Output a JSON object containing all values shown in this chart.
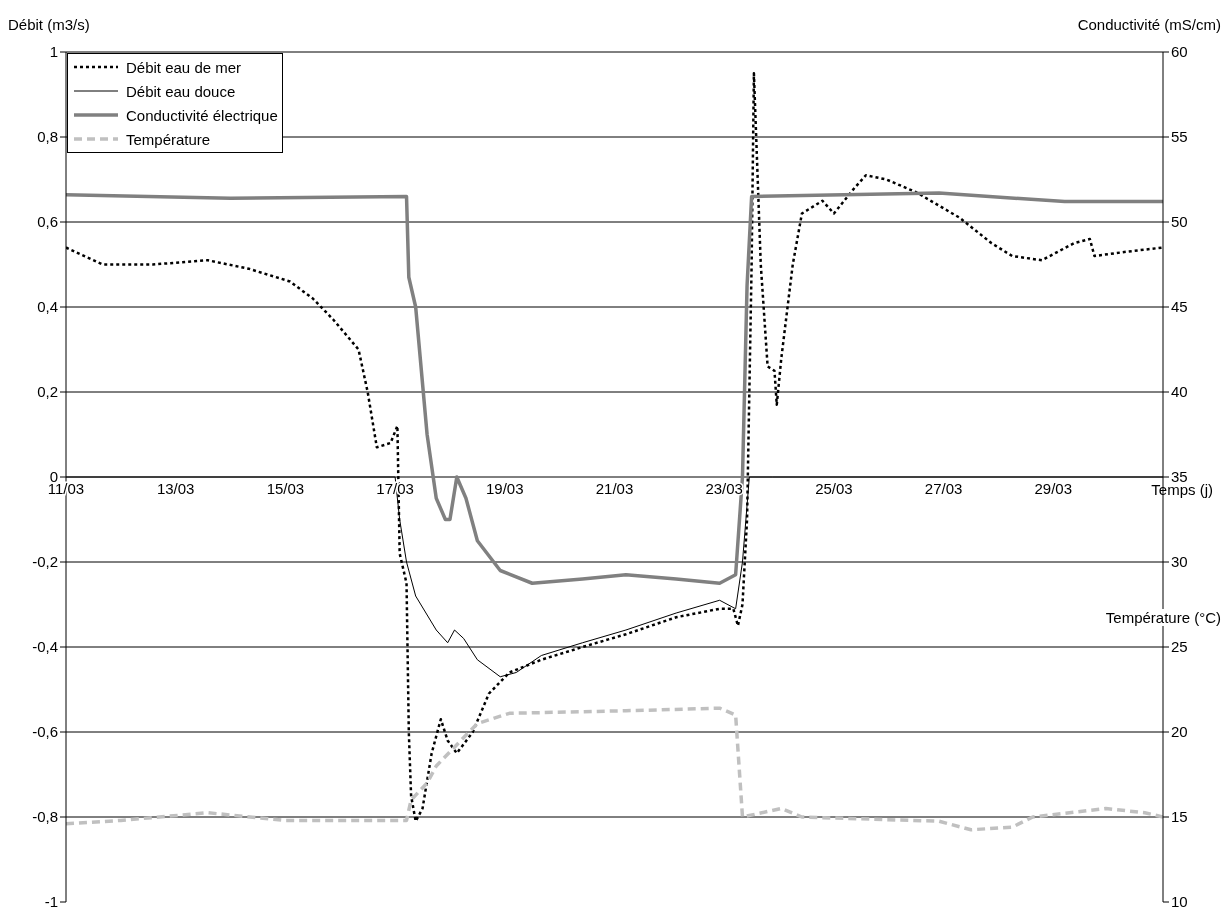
{
  "chart_data": {
    "type": "line",
    "ylabel": "Débit (m3/s)",
    "y2label": "Conductivité (mS/cm)",
    "xlabel": "Temps (j)",
    "annotations": [
      "Température (°C)"
    ],
    "xlim": [
      "--03-11",
      "--03-31"
    ],
    "xticks": [
      {
        "value": "--03-11",
        "label": "11/03"
      },
      {
        "value": "--03-13",
        "label": "13/03"
      },
      {
        "value": "--03-15",
        "label": "15/03"
      },
      {
        "value": "--03-17",
        "label": "17/03"
      },
      {
        "value": "--03-19",
        "label": "19/03"
      },
      {
        "value": "--03-21",
        "label": "21/03"
      },
      {
        "value": "--03-23",
        "label": "23/03"
      },
      {
        "value": "--03-25",
        "label": "25/03"
      },
      {
        "value": "--03-27",
        "label": "27/03"
      },
      {
        "value": "--03-29",
        "label": "29/03"
      }
    ],
    "ylim": [
      -1,
      1
    ],
    "yticks": [
      -1,
      {
        "value": -0.8,
        "label": "-0,8"
      },
      {
        "value": -0.6,
        "label": "-0,6"
      },
      {
        "value": -0.4,
        "label": "-0,4"
      },
      {
        "value": -0.2,
        "label": "-0,2"
      },
      0,
      {
        "value": 0.2,
        "label": "0,2"
      },
      {
        "value": 0.4,
        "label": "0,4"
      },
      {
        "value": 0.6,
        "label": "0,6"
      },
      {
        "value": 0.8,
        "label": "0,8"
      },
      1
    ],
    "y2lim": [
      10,
      60
    ],
    "y2ticks": [
      10,
      15,
      20,
      25,
      30,
      35,
      40,
      45,
      50,
      55,
      60
    ],
    "grid": "y",
    "legend": "top left",
    "marker": "none",
    "series": [
      {
        "name": "Débit eau de mer",
        "color": "#000000",
        "line_style": "dotted",
        "x": [
          "--03-11T00:00",
          "--03-11T16:00",
          "--03-12T14:00",
          "--03-13T14:00",
          "--03-14T08:00",
          "--03-15T02:00",
          "--03-15T12:00",
          "--03-15T21:00",
          "--03-16T08:00",
          "--03-16T12:00",
          "--03-16T16:00",
          "--03-16T22:00",
          "--03-17T01:00",
          "--03-17T02:00",
          "--03-17T05:00",
          "--03-17T06:00",
          "--03-17T07:00",
          "--03-17T09:00",
          "--03-17T12:00",
          "--03-17T16:00",
          "--03-17T20:00",
          "--03-17T23:00",
          "--03-18T03:00",
          "--03-18T10:00",
          "--03-18T17:00",
          "--03-19T02:00",
          "--03-19T16:00",
          "--03-20T10:00",
          "--03-21T05:00",
          "--03-22T03:00",
          "--03-22T22:00",
          "--03-23T04:00",
          "--03-23T06:00",
          "--03-23T08:00",
          "--03-23T10:00",
          "--03-23T12:00",
          "--03-23T13:00",
          "--03-23T16:00",
          "--03-23T19:00",
          "--03-23T22:00",
          "--03-23T23:00",
          "--03-24T01:00",
          "--03-24T06:00",
          "--03-24T10:00",
          "--03-24T19:00",
          "--03-25T00:00",
          "--03-25T09:00",
          "--03-25T14:00",
          "--03-25T23:00",
          "--03-26T12:00",
          "--03-27T07:00",
          "--03-27T21:00",
          "--03-28T06:00",
          "--03-28T19:00",
          "--03-29T09:00",
          "--03-29T16:00",
          "--03-29T18:00",
          "--03-30T08:00",
          "--03-31T00:00"
        ],
        "values": [
          0.54,
          0.5,
          0.5,
          0.51,
          0.49,
          0.46,
          0.42,
          0.37,
          0.3,
          0.2,
          0.07,
          0.08,
          0.12,
          -0.18,
          -0.25,
          -0.6,
          -0.75,
          -0.81,
          -0.78,
          -0.65,
          -0.57,
          -0.62,
          -0.65,
          -0.6,
          -0.51,
          -0.46,
          -0.43,
          -0.4,
          -0.37,
          -0.33,
          -0.31,
          -0.31,
          -0.35,
          -0.3,
          -0.1,
          0.5,
          0.95,
          0.5,
          0.26,
          0.25,
          0.17,
          0.28,
          0.5,
          0.62,
          0.65,
          0.62,
          0.68,
          0.71,
          0.7,
          0.67,
          0.61,
          0.55,
          0.52,
          0.51,
          0.55,
          0.56,
          0.52,
          0.53,
          0.54
        ]
      },
      {
        "name": "Débit eau douce",
        "color": "#000000",
        "line_style": "solid",
        "x": [
          "--03-11T00:00",
          "--03-17T00:00",
          "--03-17T02:00",
          "--03-17T05:00",
          "--03-17T09:00",
          "--03-17T18:00",
          "--03-17T23:00",
          "--03-18T02:00",
          "--03-18T06:00",
          "--03-18T12:00",
          "--03-18T22:00",
          "--03-19T05:00",
          "--03-19T16:00",
          "--03-20T10:00",
          "--03-21T05:00",
          "--03-22T03:00",
          "--03-22T22:00",
          "--03-23T05:00",
          "--03-23T08:00",
          "--03-23T11:00",
          "--03-23T21:00",
          "--03-31T00:00"
        ],
        "values": [
          0,
          0,
          -0.1,
          -0.2,
          -0.28,
          -0.36,
          -0.39,
          -0.36,
          -0.38,
          -0.43,
          -0.47,
          -0.46,
          -0.42,
          -0.39,
          -0.36,
          -0.32,
          -0.29,
          -0.31,
          -0.2,
          0,
          0,
          0
        ]
      },
      {
        "name": "Conductivité électrique",
        "color": "#808080",
        "line_style": "solid",
        "axis": "y2",
        "x": [
          "--03-11T00:00",
          "--03-14T00:00",
          "--03-17T05:00",
          "--03-17T06:00",
          "--03-17T09:00",
          "--03-17T14:00",
          "--03-17T18:00",
          "--03-17T22:00",
          "--03-18T00:00",
          "--03-18T03:00",
          "--03-18T07:00",
          "--03-18T12:00",
          "--03-18T22:00",
          "--03-19T12:00",
          "--03-20T10:00",
          "--03-21T05:00",
          "--03-22T03:00",
          "--03-22T22:00",
          "--03-23T05:00",
          "--03-23T08:00",
          "--03-23T10:00",
          "--03-23T12:00",
          "--03-26T22:00",
          "--03-29T05:00",
          "--03-31T00:00"
        ],
        "values": [
          51.6,
          51.4,
          51.5,
          46.75,
          45,
          37.5,
          33.75,
          32.5,
          32.5,
          35,
          33.75,
          31.25,
          29.5,
          28.75,
          29,
          29.25,
          29,
          28.75,
          29.25,
          35,
          46.25,
          51.5,
          51.7,
          51.2,
          51.2
        ]
      },
      {
        "name": "Température",
        "color": "#c0c0c0",
        "line_style": "dashed",
        "axis": "y2",
        "x": [
          "--03-11T00:00",
          "--03-12T00:00",
          "--03-13T14:00",
          "--03-15T00:00",
          "--03-17T05:00",
          "--03-17T07:00",
          "--03-17T14:00",
          "--03-17T18:00",
          "--03-18T03:00",
          "--03-18T12:00",
          "--03-19T02:00",
          "--03-21T05:00",
          "--03-22T22:00",
          "--03-23T05:00",
          "--03-23T08:00",
          "--03-24T01:00",
          "--03-24T10:00",
          "--03-26T22:00",
          "--03-27T12:00",
          "--03-28T06:00",
          "--03-28T15:00",
          "--03-29T23:00",
          "--03-30T16:00",
          "--03-31T00:00"
        ],
        "values": [
          14.6,
          14.8,
          15.25,
          14.8,
          14.8,
          16,
          17,
          18,
          19.25,
          20.5,
          21.1,
          21.25,
          21.4,
          21,
          15,
          15.5,
          15,
          14.75,
          14.25,
          14.4,
          15,
          15.5,
          15.25,
          15
        ]
      }
    ]
  }
}
